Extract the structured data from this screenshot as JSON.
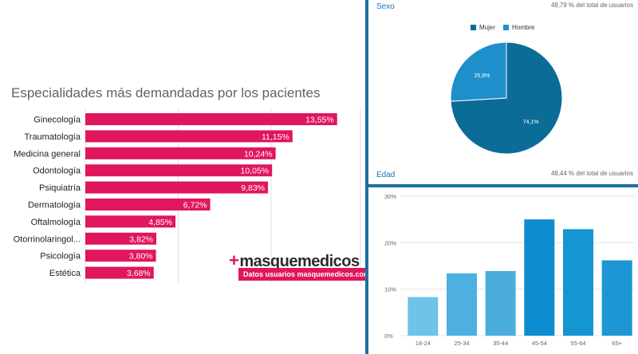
{
  "left": {
    "title": "Especialidades más demandadas por los pacientes",
    "brand_name": "masquemedicos",
    "brand_plus": "+",
    "brand_tagline": "Datos usuarios masquemedicos.com"
  },
  "sexo": {
    "title": "Sexo",
    "note": "48,79 % del total de usuarios",
    "legend": [
      {
        "label": "Mujer",
        "color": "#0b6c98"
      },
      {
        "label": "Hombre",
        "color": "#1f8fcb"
      }
    ]
  },
  "edad": {
    "title": "Edad",
    "note": "48,44 % del total de usuarios"
  },
  "colors": {
    "bar_pink": "#e0165e",
    "divider": "#1c6fa0"
  },
  "chart_data": [
    {
      "type": "bar",
      "orientation": "horizontal",
      "title": "Especialidades más demandadas por los pacientes",
      "categories": [
        "Ginecología",
        "Traumatología",
        "Medicina general",
        "Odontología",
        "Psiquiatría",
        "Dermatología",
        "Oftalmología",
        "Otorrinolaringol...",
        "Psicología",
        "Estética"
      ],
      "values": [
        13.55,
        11.15,
        10.24,
        10.05,
        9.83,
        6.72,
        4.85,
        3.82,
        3.8,
        3.68
      ],
      "value_labels": [
        "13,55%",
        "11,15%",
        "10,24%",
        "10,05%",
        "9,83%",
        "6,72%",
        "4,85%",
        "3,82%",
        "3,80%",
        "3,68%"
      ],
      "xlim": [
        0,
        15
      ],
      "grid": true,
      "color": "#e0165e"
    },
    {
      "type": "pie",
      "title": "Sexo",
      "labels": [
        "Mujer",
        "Hombre"
      ],
      "values": [
        74.1,
        25.9
      ],
      "value_labels": [
        "74,1%",
        "25,9%"
      ],
      "colors": [
        "#0b6c98",
        "#1f8fcb"
      ],
      "legend": "top"
    },
    {
      "type": "bar",
      "title": "Edad",
      "categories": [
        "18-24",
        "25-34",
        "35-44",
        "45-54",
        "55-64",
        "65+"
      ],
      "values": [
        8.3,
        13.4,
        13.9,
        25.0,
        22.9,
        16.2
      ],
      "colors": [
        "#6fc3e8",
        "#4db0e0",
        "#4aaddc",
        "#0d8ccf",
        "#1595d2",
        "#1c97d3"
      ],
      "ylim": [
        0,
        30
      ],
      "yticks": [
        0,
        10,
        20,
        30
      ],
      "ytick_labels": [
        "0%",
        "10%",
        "20%",
        "30%"
      ],
      "grid": true
    }
  ]
}
